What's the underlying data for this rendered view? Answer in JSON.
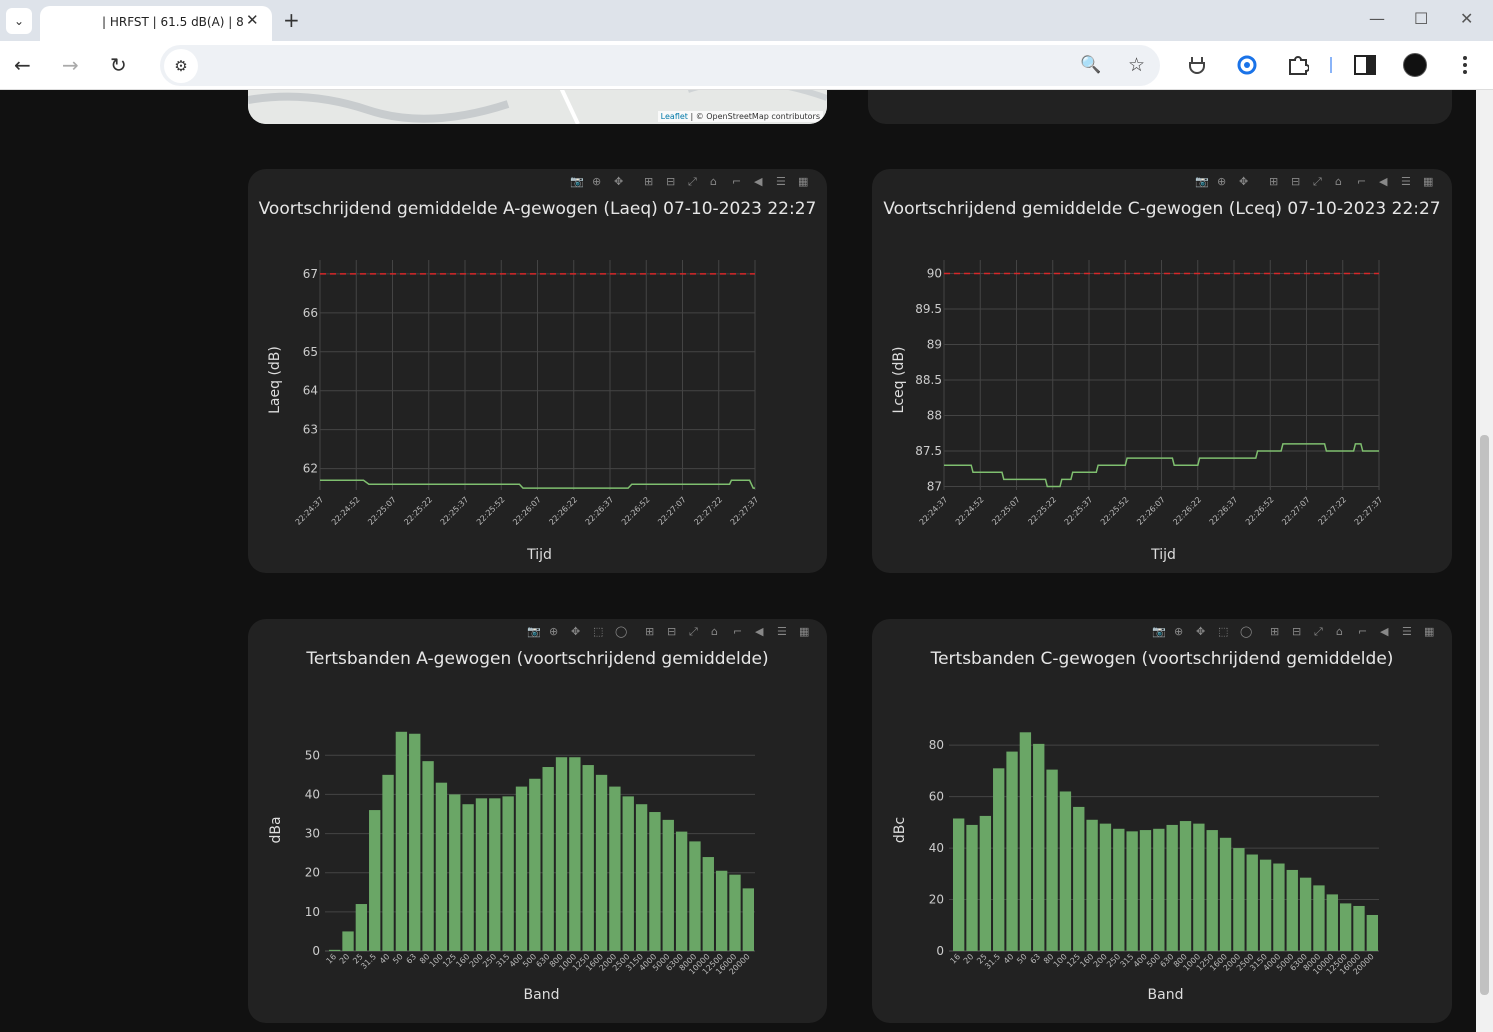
{
  "browser": {
    "tab_title": "| HRFST | 61.5 dB(A) | 8",
    "tab_close": "✕",
    "new_tab": "+",
    "minimize": "—",
    "maximize": "☐",
    "close": "✕",
    "back": "←",
    "forward": "→",
    "reload": "↻",
    "site_info": "⚙",
    "zoom_icon": "🔍",
    "star_icon": "☆"
  },
  "map": {
    "leaflet": "Leaflet",
    "attribution": " | © OpenStreetMap contributors"
  },
  "modebar_icons": [
    "camera-icon",
    "zoom-icon",
    "pan-icon",
    "zoom-in-icon",
    "zoom-out-icon",
    "autoscale-icon",
    "home-icon",
    "spike-icon",
    "hover-closest-icon",
    "hover-compare-icon",
    "plotly-logo-icon"
  ],
  "chart_data": [
    {
      "id": "laeq",
      "type": "line",
      "title": "Voortschrijdend gemiddelde A-gewogen (Laeq) 07-10-2023 22:27",
      "xlabel": "Tijd",
      "ylabel": "Laeq (dB)",
      "x_ticks": [
        "22:24:37",
        "22:24:52",
        "22:25:07",
        "22:25:22",
        "22:25:37",
        "22:25:52",
        "22:26:07",
        "22:26:22",
        "22:26:37",
        "22:26:52",
        "22:27:07",
        "22:27:22",
        "22:27:37"
      ],
      "y_ticks": [
        62,
        63,
        64,
        65,
        66,
        67
      ],
      "ylim": [
        61.45,
        67.1
      ],
      "threshold": 67,
      "threshold_color": "#d62728",
      "line_color": "#7fbf6f",
      "series": [
        {
          "x": [
            0,
            1.2,
            1.35,
            5.5,
            5.6,
            8.5,
            8.6,
            11.3,
            11.35,
            11.85,
            11.95,
            12.0
          ],
          "y": [
            61.7,
            61.7,
            61.6,
            61.6,
            61.5,
            61.5,
            61.6,
            61.6,
            61.7,
            61.7,
            61.5,
            61.5
          ]
        }
      ]
    },
    {
      "id": "lceq",
      "type": "line",
      "title": "Voortschrijdend gemiddelde C-gewogen (Lceq) 07-10-2023 22:27",
      "xlabel": "Tijd",
      "ylabel": "Lceq (dB)",
      "x_ticks": [
        "22:24:37",
        "22:24:52",
        "22:25:07",
        "22:25:22",
        "22:25:37",
        "22:25:52",
        "22:26:07",
        "22:26:22",
        "22:26:37",
        "22:26:52",
        "22:27:07",
        "22:27:22",
        "22:27:37"
      ],
      "y_ticks": [
        87,
        87.5,
        88,
        88.5,
        89,
        89.5,
        90
      ],
      "ylim": [
        86.95,
        90.05
      ],
      "threshold": 90,
      "threshold_color": "#d62728",
      "line_color": "#7fbf6f",
      "series": [
        {
          "x": [
            0,
            0.75,
            0.8,
            1.6,
            1.65,
            2.8,
            2.85,
            3.2,
            3.25,
            3.5,
            3.55,
            4.2,
            4.25,
            5.0,
            5.05,
            6.3,
            6.35,
            7.0,
            7.05,
            8.6,
            8.65,
            9.3,
            9.35,
            10.5,
            10.55,
            11.3,
            11.35,
            11.5,
            11.55,
            11.7,
            11.75,
            12.0
          ],
          "y": [
            87.3,
            87.3,
            87.2,
            87.2,
            87.1,
            87.1,
            87.0,
            87.0,
            87.1,
            87.1,
            87.2,
            87.2,
            87.3,
            87.3,
            87.4,
            87.4,
            87.3,
            87.3,
            87.4,
            87.4,
            87.5,
            87.5,
            87.6,
            87.6,
            87.5,
            87.5,
            87.6,
            87.6,
            87.5,
            87.5,
            87.5,
            87.5
          ]
        }
      ]
    },
    {
      "id": "tertsA",
      "type": "bar",
      "title": "Tertsbanden A-gewogen (voortschrijdend gemiddelde)",
      "xlabel": "Band",
      "ylabel": "dBa",
      "bar_color": "#6aa666",
      "categories": [
        "16",
        "20",
        "25",
        "31.5",
        "40",
        "50",
        "63",
        "80",
        "100",
        "125",
        "160",
        "200",
        "250",
        "315",
        "400",
        "500",
        "630",
        "800",
        "1000",
        "1250",
        "1600",
        "2000",
        "2500",
        "3150",
        "4000",
        "5000",
        "6300",
        "8000",
        "10000",
        "12500",
        "16000",
        "20000"
      ],
      "values": [
        0.3,
        5,
        12,
        36,
        45,
        56,
        55.5,
        48.5,
        43,
        40,
        37.5,
        39,
        39,
        39.5,
        42,
        44,
        47,
        49.5,
        49.5,
        47.5,
        45,
        42,
        39.5,
        37.5,
        35.5,
        33.5,
        30.5,
        28,
        24,
        20.5,
        19.5,
        16
      ],
      "y_ticks": [
        0,
        10,
        20,
        30,
        40,
        50
      ],
      "ylim": [
        0,
        58.5
      ]
    },
    {
      "id": "tertsC",
      "type": "bar",
      "title": "Tertsbanden C-gewogen (voortschrijdend gemiddelde)",
      "xlabel": "Band",
      "ylabel": "dBc",
      "bar_color": "#6aa666",
      "categories": [
        "16",
        "20",
        "25",
        "31.5",
        "40",
        "50",
        "63",
        "80",
        "100",
        "125",
        "160",
        "200",
        "250",
        "315",
        "400",
        "500",
        "630",
        "800",
        "1000",
        "1250",
        "1600",
        "2000",
        "2500",
        "3150",
        "4000",
        "5000",
        "6300",
        "8000",
        "10000",
        "12500",
        "16000",
        "20000"
      ],
      "values": [
        51.5,
        49,
        52.5,
        71,
        77.5,
        85,
        80.5,
        70.5,
        62,
        56,
        51,
        49.5,
        47.5,
        46.5,
        47,
        47.5,
        49,
        50.5,
        49.5,
        47,
        44,
        40,
        37.5,
        35.5,
        34,
        31.5,
        28.5,
        25.5,
        22,
        18.5,
        17.5,
        14
      ],
      "y_ticks": [
        0,
        20,
        40,
        60,
        80
      ],
      "ylim": [
        0,
        89
      ]
    }
  ]
}
